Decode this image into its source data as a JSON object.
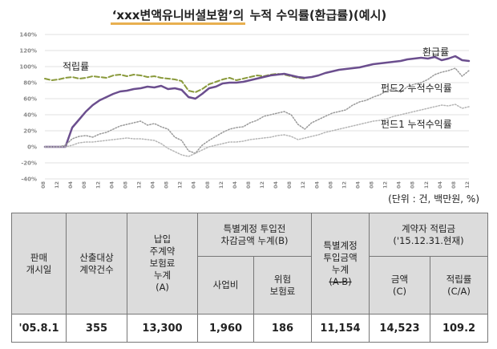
{
  "title_prefix": "‘xxx변액유니버셜보험’의",
  "title_suffix": "누적 수익률(환급률)(예시)",
  "chart_data": {
    "type": "line",
    "x": [
      "'05.08",
      "'05.10",
      "'05.12",
      "'06.02",
      "'06.04",
      "'06.06",
      "'06.08",
      "'06.10",
      "'06.12",
      "'07.02",
      "'07.04",
      "'07.06",
      "'07.08",
      "'07.10",
      "'07.12",
      "'08.02",
      "'08.04",
      "'08.06",
      "'08.08",
      "'08.10",
      "'08.12",
      "'09.02",
      "'09.04",
      "'09.06",
      "'09.08",
      "'09.10",
      "'09.12",
      "'10.02",
      "'10.04",
      "'10.06",
      "'10.08",
      "'10.10",
      "'10.12",
      "'11.02",
      "'11.04",
      "'11.06",
      "'11.08",
      "'11.10",
      "'11.12",
      "'12.02",
      "'12.04",
      "'12.06",
      "'12.08",
      "'12.10",
      "'12.12",
      "'13.02",
      "'13.04",
      "'13.06",
      "'13.08",
      "'13.10",
      "'13.12",
      "'14.02",
      "'14.04",
      "'14.06",
      "'14.08",
      "'14.10",
      "'14.12",
      "'15.02",
      "'15.04",
      "'15.06",
      "'15.08",
      "'15.10",
      "'15.12"
    ],
    "x_tick_labels": [
      "'05.08",
      "'05.12",
      "'06.04",
      "'06.08",
      "'06.12",
      "'07.04",
      "'07.08",
      "'07.12",
      "'08.04",
      "'08.08",
      "'08.12",
      "'09.04",
      "'09.08",
      "'09.12",
      "'10.04",
      "'10.08",
      "'10.12",
      "'11.04",
      "'11.08",
      "'11.12",
      "'12.04",
      "'12.08",
      "'12.12",
      "'13.04",
      "'13.08",
      "'13.12",
      "'14.04",
      "'14.08",
      "'14.12",
      "'15.04",
      "'15.08",
      "'15.12"
    ],
    "y_tick_labels": [
      "140%",
      "120%",
      "100%",
      "80%",
      "60%",
      "40%",
      "20%",
      "0%",
      "-20%",
      "-40%"
    ],
    "ylim": [
      -40,
      140
    ],
    "series": [
      {
        "name": "적립률",
        "color": "#8a9a3c",
        "style": "dashed",
        "width": 2,
        "values": [
          85,
          83,
          84,
          86,
          87,
          85,
          86,
          88,
          87,
          86,
          89,
          90,
          88,
          90,
          89,
          87,
          88,
          86,
          85,
          84,
          82,
          70,
          68,
          72,
          78,
          81,
          84,
          86,
          83,
          85,
          87,
          89,
          88,
          90,
          91,
          90,
          88,
          86,
          85,
          null,
          null,
          null,
          null,
          null,
          null,
          null,
          null,
          null,
          null,
          null,
          null,
          null,
          null,
          null,
          null,
          null,
          null,
          null,
          null,
          null,
          null,
          null,
          null
        ]
      },
      {
        "name": "환급률",
        "color": "#6b4e8e",
        "style": "solid",
        "width": 2.5,
        "values": [
          0,
          0,
          0,
          0,
          24,
          34,
          44,
          52,
          58,
          62,
          66,
          69,
          70,
          72,
          73,
          75,
          74,
          76,
          72,
          73,
          71,
          62,
          60,
          66,
          73,
          75,
          79,
          80,
          80,
          81,
          83,
          85,
          87,
          89,
          90,
          91,
          89,
          87,
          86,
          87,
          89,
          92,
          94,
          96,
          97,
          98,
          99,
          101,
          103,
          104,
          105,
          106,
          107,
          109,
          110,
          111,
          110,
          112,
          108,
          110,
          113,
          108,
          107
        ]
      },
      {
        "name": "펀드2 누적수익률",
        "color": "#9a9a9a",
        "style": "dotted",
        "width": 1.5,
        "values": [
          0,
          0,
          0,
          2,
          10,
          13,
          14,
          12,
          16,
          18,
          22,
          26,
          28,
          30,
          32,
          27,
          29,
          25,
          22,
          12,
          8,
          -5,
          -8,
          2,
          8,
          13,
          18,
          22,
          24,
          25,
          30,
          33,
          38,
          40,
          42,
          44,
          40,
          28,
          22,
          30,
          34,
          38,
          42,
          44,
          46,
          52,
          56,
          58,
          62,
          65,
          70,
          72,
          68,
          75,
          78,
          80,
          84,
          90,
          93,
          95,
          98,
          88,
          95
        ]
      },
      {
        "name": "펀드1 누적수익률",
        "color": "#b5b5b5",
        "style": "dotted",
        "width": 1.5,
        "values": [
          0,
          0,
          0,
          0,
          2,
          5,
          6,
          6,
          7,
          8,
          9,
          10,
          11,
          10,
          10,
          9,
          8,
          4,
          -2,
          -6,
          -10,
          -12,
          -8,
          -4,
          0,
          2,
          4,
          6,
          6,
          7,
          9,
          10,
          11,
          12,
          14,
          15,
          13,
          9,
          11,
          13,
          15,
          18,
          20,
          22,
          24,
          26,
          28,
          30,
          32,
          33,
          35,
          38,
          40,
          42,
          44,
          46,
          48,
          50,
          52,
          51,
          53,
          48,
          50
        ]
      }
    ]
  },
  "unit_text": "(단위 : 건, 백만원, %)",
  "table": {
    "h_launch": "판매\n개시일",
    "h_count": "산출대상\n계약건수",
    "h_premium": "납입\n주계약\n보험료\n누계\n(A)",
    "h_deduct": "특별계정 투입전\n차감금액 누계(B)",
    "h_biz": "사업비",
    "h_risk": "위험\n보험료",
    "h_special": "특별계정\n투입금액\n누계",
    "h_special_formula": "(A-B)",
    "h_reserve": "계약자 적립금\n('15.12.31.현재)",
    "h_amount": "금액\n(C)",
    "h_ratio": "적립률\n(C/A)",
    "row": {
      "launch": "'05.8.1",
      "count": "355",
      "premium": "13,300",
      "biz": "1,960",
      "risk": "186",
      "special": "11,154",
      "amount": "14,523",
      "ratio": "109.2"
    }
  }
}
